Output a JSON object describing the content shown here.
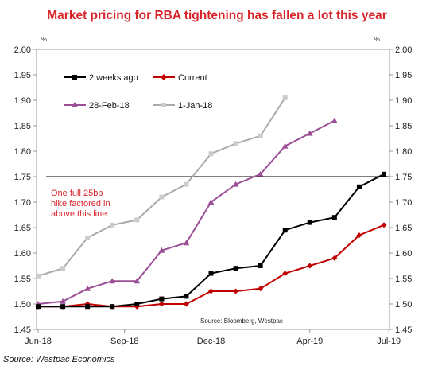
{
  "chart_data": {
    "type": "line",
    "title": "Market pricing for RBA tightening has fallen a lot this year",
    "y_unit_left": "%",
    "y_unit_right": "%",
    "ylim": [
      1.45,
      2.0
    ],
    "y_ticks": [
      "2.00",
      "1.95",
      "1.90",
      "1.85",
      "1.80",
      "1.75",
      "1.70",
      "1.65",
      "1.60",
      "1.55",
      "1.50",
      "1.45"
    ],
    "x_tick_labels": [
      "Jun-18",
      "Sep-18",
      "Dec-18",
      "Apr-19",
      "Jul-19"
    ],
    "x_positions": [
      0,
      1,
      2,
      3,
      4,
      5,
      6,
      7,
      8,
      9,
      10,
      11,
      12,
      13,
      14,
      15
    ],
    "x_tick_positions": [
      0,
      3.5,
      7,
      11,
      14.2
    ],
    "grid": false,
    "legend_placement": "top-left",
    "series": [
      {
        "name": "2 weeks ago",
        "color": "#000000",
        "marker": "square",
        "values": [
          1.495,
          1.495,
          1.495,
          1.495,
          1.5,
          1.51,
          1.515,
          1.56,
          1.57,
          1.575,
          1.645,
          1.66,
          1.67,
          1.73,
          1.755
        ]
      },
      {
        "name": "Current",
        "color": "#c00000",
        "marker": "diamond",
        "values": [
          1.495,
          1.495,
          1.5,
          1.495,
          1.495,
          1.5,
          1.5,
          1.525,
          1.525,
          1.53,
          1.56,
          1.575,
          1.59,
          1.635,
          1.655
        ]
      },
      {
        "name": "28-Feb-18",
        "color": "#9b4f96",
        "marker": "triangle",
        "values": [
          1.5,
          1.505,
          1.53,
          1.545,
          1.545,
          1.605,
          1.62,
          1.7,
          1.735,
          1.755,
          1.81,
          1.835,
          1.86
        ]
      },
      {
        "name": "1-Jan-18",
        "color": "#aaaaaa",
        "marker": "square",
        "values": [
          1.555,
          1.57,
          1.63,
          1.655,
          1.665,
          1.71,
          1.735,
          1.795,
          1.815,
          1.83,
          1.905
        ]
      }
    ],
    "hline": {
      "value": 1.75,
      "color": "#000000"
    },
    "annotation": [
      "One full 25bp",
      "hike factored in",
      "above this line"
    ],
    "source_note": "Source: Bloomberg, Westpac"
  },
  "footer": "Source: Westpac Economics"
}
